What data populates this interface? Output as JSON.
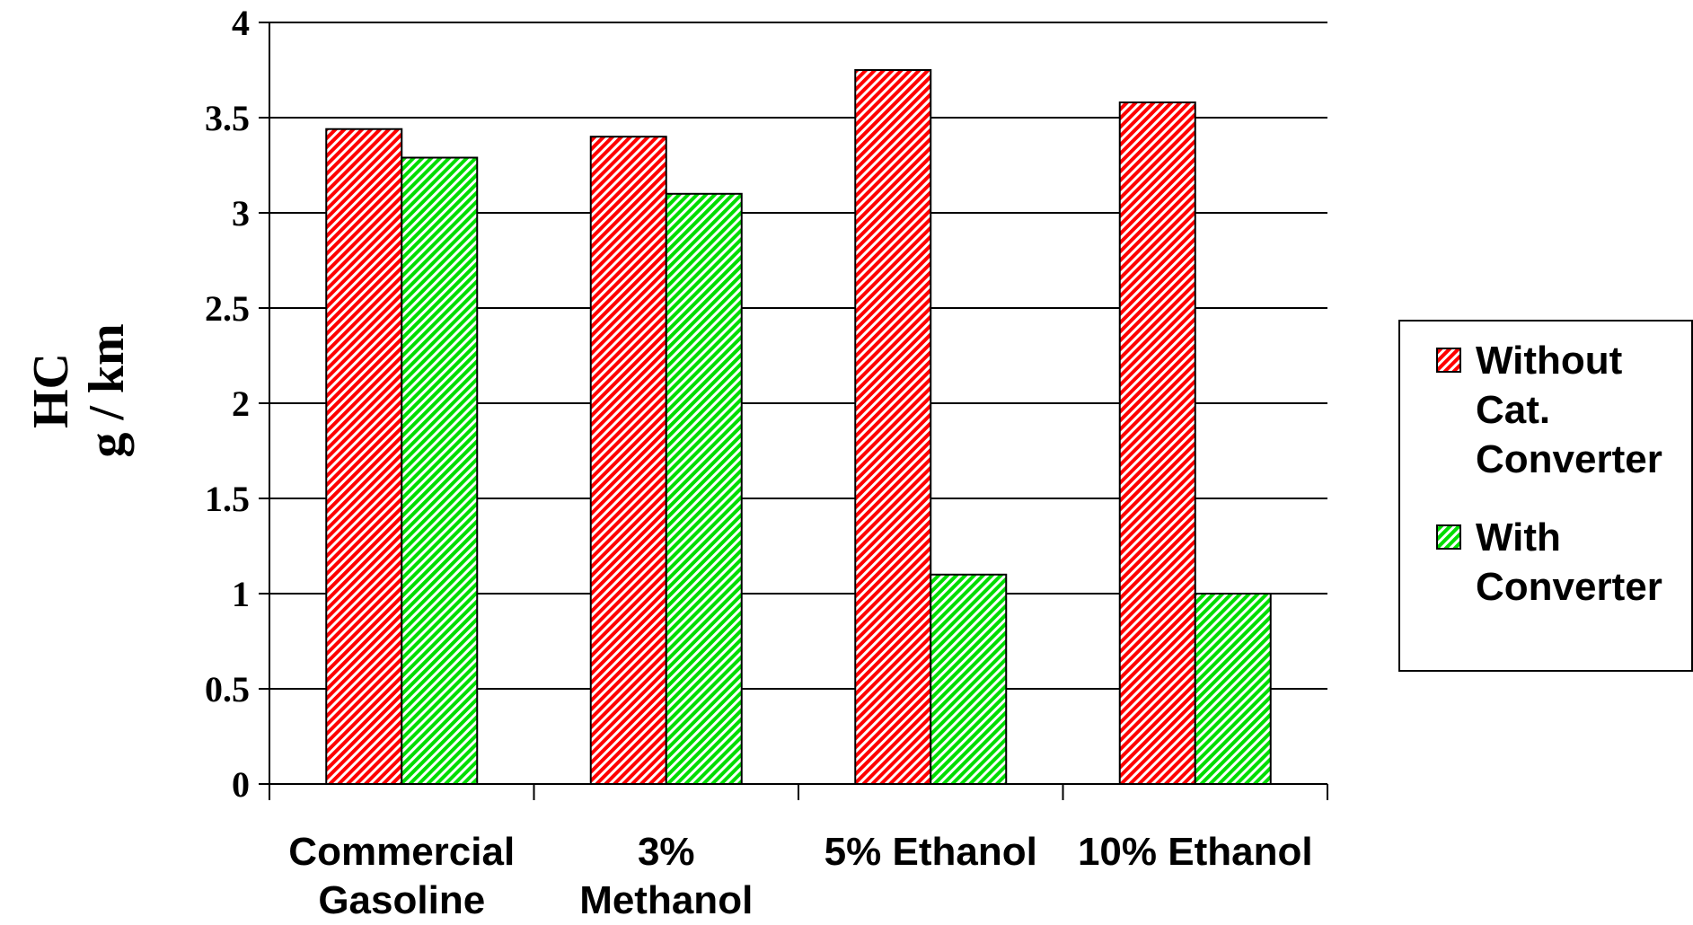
{
  "chart_data": {
    "type": "bar",
    "title": "",
    "xlabel": "",
    "ylabel_lines": [
      "HC",
      "g / km"
    ],
    "categories": [
      [
        "Commercial",
        "Gasoline"
      ],
      [
        "3%",
        "Methanol"
      ],
      [
        "5% Ethanol"
      ],
      [
        "10% Ethanol"
      ]
    ],
    "series": [
      {
        "name": "Without Cat. Converter",
        "label_lines": [
          "Without",
          "Cat.",
          "Converter"
        ],
        "values": [
          3.44,
          3.4,
          3.75,
          3.58
        ],
        "color": "#ff0000"
      },
      {
        "name": "With Converter",
        "label_lines": [
          "With",
          "Converter"
        ],
        "values": [
          3.29,
          3.1,
          1.1,
          1.0
        ],
        "color": "#00dd00"
      }
    ],
    "yticks": [
      "0",
      "0.5",
      "1",
      "1.5",
      "2",
      "2.5",
      "3",
      "3.5",
      "4"
    ],
    "ylim": [
      0,
      4
    ],
    "grid": true,
    "legend_position": "right"
  }
}
